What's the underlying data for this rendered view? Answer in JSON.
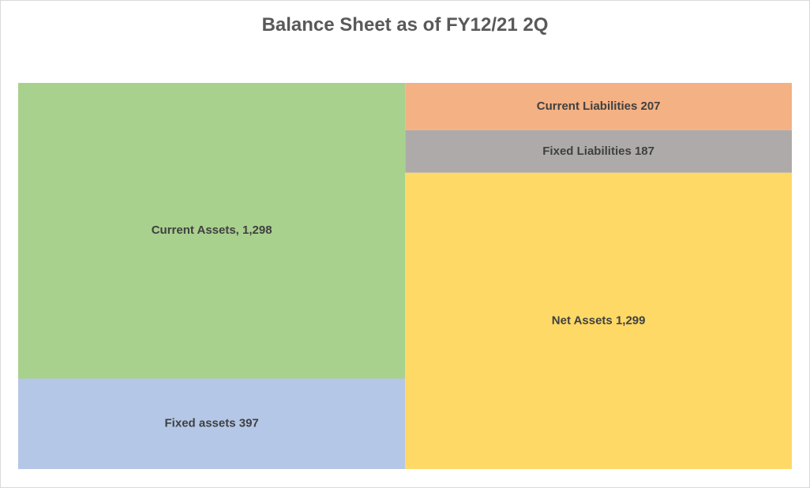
{
  "chart_data": {
    "type": "treemap",
    "title": "Balance Sheet as of FY12/21 2Q",
    "columns": [
      {
        "items": [
          {
            "name": "Current Assets",
            "value": 1298,
            "label": "Current Assets, 1,298",
            "color": "#a9d18e"
          },
          {
            "name": "Fixed assets",
            "value": 397,
            "label": "Fixed assets 397",
            "color": "#b4c7e7"
          }
        ]
      },
      {
        "items": [
          {
            "name": "Current Liabilities",
            "value": 207,
            "label": "Current Liabilities 207",
            "color": "#f4b183"
          },
          {
            "name": "Fixed Liabilities",
            "value": 187,
            "label": "Fixed Liabilities 187",
            "color": "#aeaaaa"
          },
          {
            "name": "Net Assets",
            "value": 1299,
            "label": "Net Assets 1,299",
            "color": "#ffd966"
          }
        ]
      }
    ]
  }
}
